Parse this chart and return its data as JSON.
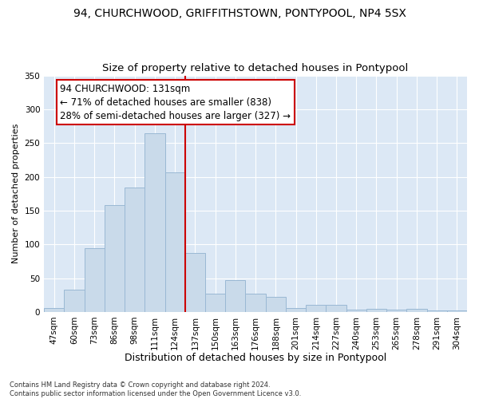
{
  "title1": "94, CHURCHWOOD, GRIFFITHSTOWN, PONTYPOOL, NP4 5SX",
  "title2": "Size of property relative to detached houses in Pontypool",
  "xlabel": "Distribution of detached houses by size in Pontypool",
  "ylabel": "Number of detached properties",
  "categories": [
    "47sqm",
    "60sqm",
    "73sqm",
    "86sqm",
    "98sqm",
    "111sqm",
    "124sqm",
    "137sqm",
    "150sqm",
    "163sqm",
    "176sqm",
    "188sqm",
    "201sqm",
    "214sqm",
    "227sqm",
    "240sqm",
    "253sqm",
    "265sqm",
    "278sqm",
    "291sqm",
    "304sqm"
  ],
  "values": [
    6,
    33,
    94,
    158,
    184,
    265,
    207,
    87,
    27,
    47,
    27,
    22,
    6,
    10,
    10,
    3,
    4,
    3,
    4,
    2,
    2
  ],
  "bar_color": "#c9daea",
  "bar_edge_color": "#9ab8d4",
  "vline_color": "#cc0000",
  "vline_x_index": 6.5,
  "annotation_text": "94 CHURCHWOOD: 131sqm\n← 71% of detached houses are smaller (838)\n28% of semi-detached houses are larger (327) →",
  "annotation_box_color": "white",
  "annotation_box_edge": "#cc0000",
  "ylim": [
    0,
    350
  ],
  "yticks": [
    0,
    50,
    100,
    150,
    200,
    250,
    300,
    350
  ],
  "background_color": "#dce8f5",
  "grid_color": "#ffffff",
  "footer": "Contains HM Land Registry data © Crown copyright and database right 2024.\nContains public sector information licensed under the Open Government Licence v3.0.",
  "title1_fontsize": 10,
  "title2_fontsize": 9.5,
  "xlabel_fontsize": 9,
  "ylabel_fontsize": 8,
  "tick_fontsize": 7.5,
  "annotation_fontsize": 8.5,
  "footer_fontsize": 6
}
